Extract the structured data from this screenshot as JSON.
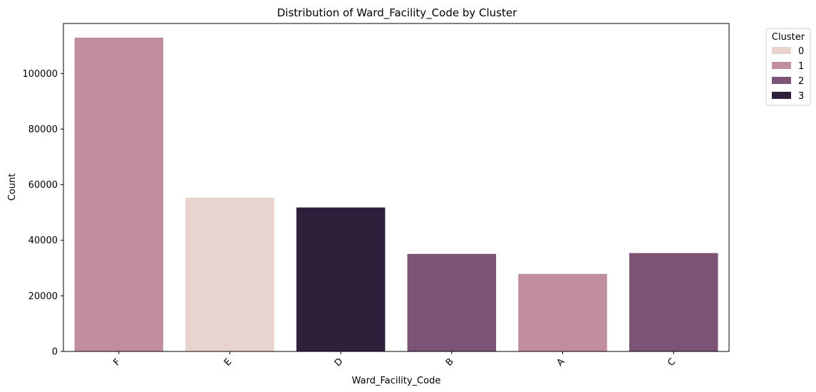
{
  "chart_data": {
    "type": "bar",
    "title": "Distribution of Ward_Facility_Code by Cluster",
    "xlabel": "Ward_Facility_Code",
    "ylabel": "Count",
    "categories": [
      "F",
      "E",
      "D",
      "B",
      "A",
      "C"
    ],
    "values": [
      112900,
      55300,
      51800,
      35100,
      27900,
      35400
    ],
    "bar_cluster": [
      "1",
      "0",
      "3",
      "2",
      "1",
      "2"
    ],
    "ylim": [
      0,
      118000
    ],
    "yticks": [
      0,
      20000,
      40000,
      60000,
      80000,
      100000
    ],
    "grid": false,
    "legend": {
      "title": "Cluster",
      "placement": "outside-top-right",
      "entries": [
        {
          "name": "0",
          "color": "#e8d3cf"
        },
        {
          "name": "1",
          "color": "#c08e9e"
        },
        {
          "name": "2",
          "color": "#7c5476"
        },
        {
          "name": "3",
          "color": "#2e203a"
        }
      ]
    }
  }
}
